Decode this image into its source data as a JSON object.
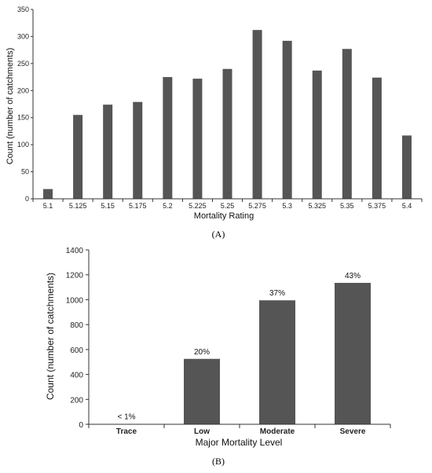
{
  "chart_data": [
    {
      "type": "bar",
      "panel_label": "(A)",
      "title": "",
      "xlabel": "Mortality Rating",
      "ylabel": "Count (number of catchments)",
      "ylim": [
        0,
        350
      ],
      "yticks": [
        0,
        50,
        100,
        150,
        200,
        250,
        300,
        350
      ],
      "categories": [
        "5.1",
        "5.125",
        "5.15",
        "5.175",
        "5.2",
        "5.225",
        "5.25",
        "5.275",
        "5.3",
        "5.325",
        "5.35",
        "5.375",
        "5.4"
      ],
      "values": [
        18,
        155,
        174,
        179,
        225,
        222,
        240,
        312,
        292,
        237,
        277,
        224,
        117
      ],
      "bar_color": "#555555",
      "grid": false
    },
    {
      "type": "bar",
      "panel_label": "(B)",
      "title": "",
      "xlabel": "Major Mortality Level",
      "ylabel": "Count (number of catchments)",
      "ylim": [
        0,
        1400
      ],
      "yticks": [
        0,
        200,
        400,
        600,
        800,
        1000,
        1200,
        1400
      ],
      "categories": [
        "Trace",
        "Low",
        "Moderate",
        "Severe"
      ],
      "values": [
        2,
        525,
        995,
        1135
      ],
      "data_labels": [
        "< 1%",
        "20%",
        "37%",
        "43%"
      ],
      "bar_color": "#555555",
      "grid": false
    }
  ]
}
